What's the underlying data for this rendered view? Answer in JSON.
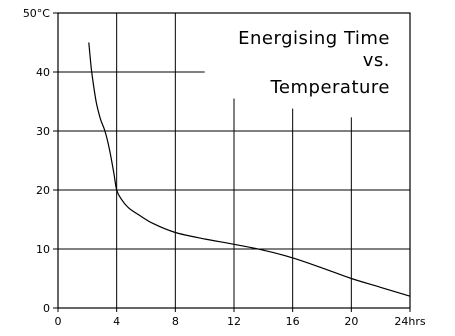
{
  "chart_data": {
    "type": "line",
    "title_lines": [
      "Energising Time",
      "vs.",
      "Temperature"
    ],
    "xlabel": "",
    "ylabel": "",
    "xlim": [
      0,
      24
    ],
    "ylim": [
      0,
      50
    ],
    "x_ticks": [
      {
        "value": 0,
        "label": "0"
      },
      {
        "value": 4,
        "label": "4"
      },
      {
        "value": 8,
        "label": "8"
      },
      {
        "value": 12,
        "label": "12"
      },
      {
        "value": 16,
        "label": "16"
      },
      {
        "value": 20,
        "label": "20"
      },
      {
        "value": 24,
        "label": "24hrs"
      }
    ],
    "y_ticks": [
      {
        "value": 0,
        "label": "0"
      },
      {
        "value": 10,
        "label": "10"
      },
      {
        "value": 20,
        "label": "20"
      },
      {
        "value": 30,
        "label": "30"
      },
      {
        "value": 40,
        "label": "40"
      },
      {
        "value": 50,
        "label": "50°C"
      }
    ],
    "grid": true,
    "series": [
      {
        "x": [
          2.1,
          2.3,
          2.6,
          2.9,
          3.2,
          3.5,
          3.8,
          4.0,
          4.3,
          4.8,
          5.5,
          6.5,
          8.0,
          10.0,
          12.0,
          14.0,
          16.0,
          18.0,
          20.0,
          22.0,
          24.0
        ],
        "y": [
          45,
          40,
          35,
          32,
          30,
          27,
          23,
          20,
          18.5,
          17,
          15.8,
          14.3,
          12.8,
          11.7,
          10.8,
          9.8,
          8.5,
          6.8,
          5.0,
          3.5,
          2.0
        ]
      }
    ]
  }
}
